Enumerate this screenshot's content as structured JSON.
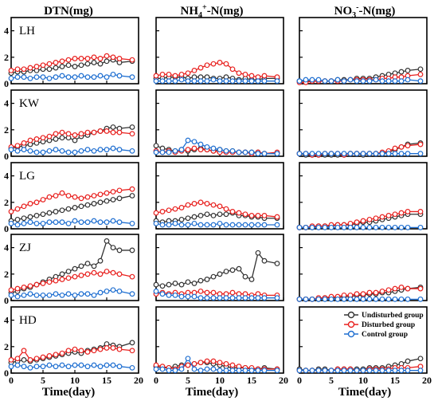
{
  "chart_data": {
    "type": "line",
    "columns": [
      {
        "title": "DTN(mg)",
        "sup": ""
      },
      {
        "title": "NH",
        "sub": "4",
        "sup": "+",
        "rest": "-N(mg)"
      },
      {
        "title": "NO",
        "sub": "3",
        "sup": "-",
        "rest": "-N(mg)"
      }
    ],
    "rows": [
      "LH",
      "KW",
      "LG",
      "ZJ",
      "HD"
    ],
    "xlabel": "Time(day)",
    "xlim": [
      0,
      20
    ],
    "ylim": [
      0,
      5
    ],
    "xticks": [
      0,
      5,
      10,
      15,
      20
    ],
    "yticks": [
      0,
      2,
      4
    ],
    "series_names": [
      "Undisturbed group",
      "Disturbed group",
      "Control group"
    ],
    "series_colors": [
      "#333333",
      "#e8201e",
      "#1f6fd1"
    ],
    "x": [
      0,
      1,
      2,
      3,
      4,
      5,
      6,
      7,
      8,
      9,
      10,
      11,
      12,
      13,
      14,
      15,
      16,
      17,
      19
    ],
    "panels": [
      [
        {
          "values": [
            [
              0.8,
              0.9,
              0.9,
              1.0,
              1.0,
              1.1,
              1.1,
              1.2,
              1.3,
              1.4,
              1.3,
              1.4,
              1.5,
              1.6,
              1.5,
              1.7,
              1.8,
              1.6,
              1.7
            ],
            [
              1.0,
              1.1,
              1.1,
              1.2,
              1.3,
              1.4,
              1.5,
              1.6,
              1.7,
              1.8,
              1.9,
              1.9,
              1.9,
              2.0,
              1.9,
              2.1,
              2.0,
              1.9,
              1.8
            ],
            [
              0.4,
              0.5,
              0.5,
              0.4,
              0.5,
              0.5,
              0.4,
              0.5,
              0.6,
              0.5,
              0.5,
              0.6,
              0.5,
              0.5,
              0.6,
              0.5,
              0.7,
              0.6,
              0.5
            ]
          ]
        },
        {
          "values": [
            [
              0.4,
              0.4,
              0.5,
              0.5,
              0.5,
              0.4,
              0.5,
              0.5,
              0.5,
              0.4,
              0.4,
              0.5,
              0.4,
              0.3,
              0.4,
              0.3,
              0.3,
              0.4,
              0.4
            ],
            [
              0.6,
              0.7,
              0.7,
              0.6,
              0.7,
              0.8,
              1.0,
              1.2,
              1.4,
              1.5,
              1.6,
              1.5,
              1.1,
              0.8,
              0.7,
              0.6,
              0.5,
              0.6,
              0.5
            ],
            [
              0.2,
              0.2,
              0.2,
              0.2,
              0.3,
              0.2,
              0.2,
              0.2,
              0.2,
              0.3,
              0.2,
              0.2,
              0.2,
              0.2,
              0.2,
              0.2,
              0.2,
              0.2,
              0.2
            ]
          ]
        },
        {
          "values": [
            [
              0.2,
              0.2,
              0.2,
              0.2,
              0.2,
              0.2,
              0.3,
              0.3,
              0.3,
              0.4,
              0.4,
              0.4,
              0.5,
              0.6,
              0.7,
              0.8,
              0.9,
              1.0,
              1.1
            ],
            [
              0.1,
              0.1,
              0.2,
              0.2,
              0.2,
              0.2,
              0.2,
              0.2,
              0.3,
              0.3,
              0.3,
              0.3,
              0.3,
              0.4,
              0.4,
              0.5,
              0.5,
              0.6,
              0.7
            ],
            [
              0.2,
              0.3,
              0.3,
              0.3,
              0.2,
              0.2,
              0.3,
              0.2,
              0.3,
              0.2,
              0.2,
              0.2,
              0.3,
              0.2,
              0.2,
              0.2,
              0.2,
              0.3,
              0.2
            ]
          ]
        }
      ],
      [
        {
          "values": [
            [
              0.6,
              0.7,
              0.8,
              0.9,
              1.0,
              1.1,
              1.2,
              1.3,
              1.4,
              1.4,
              1.2,
              1.5,
              1.6,
              1.8,
              1.9,
              2.1,
              2.2,
              2.1,
              2.2
            ],
            [
              0.7,
              0.8,
              1.0,
              1.2,
              1.3,
              1.4,
              1.5,
              1.7,
              1.8,
              1.7,
              1.6,
              1.7,
              1.8,
              1.8,
              1.9,
              1.9,
              1.8,
              1.8,
              1.7
            ],
            [
              0.5,
              0.4,
              0.5,
              0.4,
              0.3,
              0.3,
              0.4,
              0.5,
              0.4,
              0.3,
              0.3,
              0.4,
              0.5,
              0.4,
              0.5,
              0.5,
              0.6,
              0.5,
              0.4
            ]
          ]
        },
        {
          "values": [
            [
              0.8,
              0.6,
              0.5,
              0.4,
              0.5,
              0.4,
              0.5,
              0.6,
              0.5,
              0.4,
              0.5,
              0.4,
              0.4,
              0.3,
              0.3,
              0.3,
              0.3,
              0.2,
              0.2
            ],
            [
              0.4,
              0.3,
              0.4,
              0.3,
              0.4,
              0.5,
              0.6,
              0.5,
              0.5,
              0.4,
              0.3,
              0.3,
              0.3,
              0.3,
              0.3,
              0.2,
              0.3,
              0.2,
              0.3
            ],
            [
              0.3,
              0.3,
              0.3,
              0.4,
              0.5,
              1.2,
              1.1,
              0.9,
              0.7,
              0.6,
              0.5,
              0.4,
              0.4,
              0.3,
              0.3,
              0.3,
              0.2,
              0.2,
              0.2
            ]
          ]
        },
        {
          "values": [
            [
              0.2,
              0.1,
              0.1,
              0.1,
              0.1,
              0.1,
              0.1,
              0.1,
              0.2,
              0.2,
              0.1,
              0.2,
              0.2,
              0.2,
              0.3,
              0.5,
              0.7,
              0.9,
              1.0
            ],
            [
              0.2,
              0.2,
              0.1,
              0.1,
              0.2,
              0.2,
              0.2,
              0.1,
              0.2,
              0.2,
              0.2,
              0.2,
              0.2,
              0.3,
              0.4,
              0.6,
              0.7,
              0.8,
              0.9
            ],
            [
              0.2,
              0.2,
              0.2,
              0.2,
              0.2,
              0.2,
              0.2,
              0.2,
              0.2,
              0.2,
              0.2,
              0.2,
              0.2,
              0.2,
              0.2,
              0.2,
              0.2,
              0.2,
              0.2
            ]
          ]
        }
      ],
      [
        {
          "values": [
            [
              0.6,
              0.7,
              0.8,
              0.9,
              1.0,
              1.1,
              1.2,
              1.3,
              1.4,
              1.5,
              1.6,
              1.7,
              1.8,
              1.9,
              2.0,
              2.1,
              2.2,
              2.3,
              2.5
            ],
            [
              1.3,
              1.5,
              1.7,
              1.9,
              2.0,
              2.2,
              2.4,
              2.5,
              2.7,
              2.5,
              2.4,
              2.3,
              2.4,
              2.5,
              2.6,
              2.7,
              2.8,
              2.9,
              3.0
            ],
            [
              0.4,
              0.3,
              0.4,
              0.5,
              0.4,
              0.4,
              0.5,
              0.5,
              0.5,
              0.4,
              0.6,
              0.5,
              0.5,
              0.6,
              0.5,
              0.5,
              0.6,
              0.5,
              0.4
            ]
          ]
        },
        {
          "values": [
            [
              0.6,
              0.5,
              0.6,
              0.6,
              0.7,
              0.8,
              0.9,
              1.0,
              1.1,
              1.0,
              1.1,
              1.1,
              1.2,
              1.0,
              1.0,
              0.9,
              0.9,
              0.8,
              0.8
            ],
            [
              1.2,
              1.3,
              1.4,
              1.5,
              1.6,
              1.8,
              1.9,
              2.0,
              1.9,
              1.8,
              1.7,
              1.5,
              1.3,
              1.2,
              1.1,
              1.0,
              1.0,
              1.0,
              0.9
            ],
            [
              0.4,
              0.3,
              0.3,
              0.4,
              0.3,
              0.3,
              0.4,
              0.3,
              0.3,
              0.3,
              0.4,
              0.3,
              0.3,
              0.3,
              0.3,
              0.3,
              0.3,
              0.3,
              0.3
            ]
          ]
        },
        {
          "values": [
            [
              0.1,
              0.1,
              0.1,
              0.2,
              0.2,
              0.2,
              0.3,
              0.3,
              0.3,
              0.4,
              0.5,
              0.5,
              0.6,
              0.7,
              0.8,
              0.9,
              1.0,
              1.1,
              1.1
            ],
            [
              0.1,
              0.1,
              0.2,
              0.2,
              0.2,
              0.3,
              0.3,
              0.3,
              0.4,
              0.5,
              0.6,
              0.7,
              0.8,
              0.9,
              1.0,
              1.1,
              1.2,
              1.3,
              1.3
            ],
            [
              0.1,
              0.1,
              0.1,
              0.1,
              0.1,
              0.1,
              0.1,
              0.1,
              0.1,
              0.1,
              0.1,
              0.1,
              0.1,
              0.1,
              0.1,
              0.1,
              0.1,
              0.1,
              0.1
            ]
          ]
        }
      ],
      [
        {
          "values": [
            [
              0.6,
              0.7,
              0.9,
              1.0,
              1.2,
              1.4,
              1.6,
              1.8,
              2.0,
              2.2,
              2.4,
              2.6,
              2.8,
              2.6,
              3.0,
              4.5,
              4.0,
              3.8,
              3.8
            ],
            [
              0.8,
              0.9,
              1.0,
              1.1,
              1.2,
              1.3,
              1.4,
              1.5,
              1.6,
              1.7,
              1.8,
              1.9,
              2.0,
              2.1,
              2.0,
              2.2,
              2.1,
              2.0,
              1.8
            ],
            [
              0.4,
              0.3,
              0.4,
              0.5,
              0.4,
              0.4,
              0.4,
              0.5,
              0.4,
              0.5,
              0.4,
              0.5,
              0.5,
              0.4,
              0.6,
              0.7,
              0.8,
              0.7,
              0.5
            ]
          ]
        },
        {
          "values": [
            [
              1.2,
              1.1,
              1.2,
              1.3,
              1.2,
              1.4,
              1.3,
              1.5,
              1.6,
              1.8,
              2.0,
              2.2,
              2.3,
              2.4,
              1.8,
              1.6,
              3.6,
              3.0,
              2.8
            ],
            [
              0.5,
              0.6,
              0.5,
              0.6,
              0.5,
              0.6,
              0.6,
              0.7,
              0.6,
              0.6,
              0.5,
              0.5,
              0.6,
              0.5,
              0.5,
              0.4,
              0.5,
              0.4,
              0.4
            ],
            [
              0.7,
              0.5,
              0.4,
              0.4,
              0.3,
              0.3,
              0.3,
              0.2,
              0.2,
              0.2,
              0.2,
              0.2,
              0.2,
              0.2,
              0.2,
              0.2,
              0.2,
              0.2,
              0.2
            ]
          ]
        },
        {
          "values": [
            [
              0.1,
              0.1,
              0.1,
              0.1,
              0.2,
              0.2,
              0.2,
              0.3,
              0.3,
              0.4,
              0.4,
              0.5,
              0.5,
              0.6,
              0.6,
              0.7,
              0.8,
              0.9,
              1.0
            ],
            [
              0.1,
              0.1,
              0.1,
              0.2,
              0.2,
              0.3,
              0.3,
              0.4,
              0.4,
              0.5,
              0.5,
              0.6,
              0.6,
              0.7,
              0.8,
              0.9,
              1.0,
              0.9,
              0.9
            ],
            [
              0.1,
              0.1,
              0.1,
              0.1,
              0.1,
              0.1,
              0.1,
              0.1,
              0.1,
              0.1,
              0.1,
              0.1,
              0.1,
              0.1,
              0.1,
              0.1,
              0.1,
              0.1,
              0.1
            ]
          ]
        }
      ],
      [
        {
          "values": [
            [
              0.8,
              0.9,
              1.0,
              0.9,
              1.0,
              1.1,
              1.2,
              1.3,
              1.4,
              1.5,
              1.6,
              1.5,
              1.7,
              1.8,
              1.9,
              2.2,
              2.1,
              2.0,
              2.3
            ],
            [
              1.0,
              1.1,
              1.7,
              1.0,
              1.1,
              1.2,
              1.3,
              1.4,
              1.5,
              1.7,
              1.8,
              1.7,
              1.6,
              1.7,
              1.8,
              1.9,
              1.9,
              1.8,
              1.7
            ],
            [
              0.5,
              0.6,
              0.5,
              0.4,
              0.5,
              0.5,
              0.6,
              0.5,
              0.6,
              0.5,
              0.6,
              0.6,
              0.5,
              0.6,
              0.5,
              0.6,
              0.6,
              0.5,
              0.4
            ]
          ]
        },
        {
          "values": [
            [
              0.5,
              0.4,
              0.4,
              0.5,
              0.6,
              0.6,
              0.7,
              0.8,
              0.8,
              0.7,
              0.6,
              0.5,
              0.4,
              0.4,
              0.4,
              0.3,
              0.3,
              0.4,
              0.3
            ],
            [
              0.6,
              0.5,
              0.4,
              0.3,
              0.5,
              0.6,
              0.7,
              0.8,
              0.9,
              0.9,
              0.8,
              0.7,
              0.6,
              0.5,
              0.4,
              0.4,
              0.3,
              0.3,
              0.3
            ],
            [
              0.3,
              0.3,
              0.2,
              0.2,
              0.3,
              1.1,
              0.3,
              0.2,
              0.3,
              0.3,
              0.2,
              0.2,
              0.2,
              0.2,
              0.2,
              0.2,
              0.2,
              0.2,
              0.2
            ]
          ]
        },
        {
          "values": [
            [
              0.3,
              0.2,
              0.2,
              0.3,
              0.3,
              0.2,
              0.3,
              0.3,
              0.3,
              0.3,
              0.3,
              0.4,
              0.4,
              0.4,
              0.5,
              0.6,
              0.7,
              0.9,
              1.1
            ],
            [
              0.2,
              0.2,
              0.2,
              0.2,
              0.2,
              0.2,
              0.3,
              0.3,
              0.3,
              0.2,
              0.2,
              0.3,
              0.3,
              0.3,
              0.3,
              0.4,
              0.4,
              0.4,
              0.5
            ],
            [
              0.2,
              0.2,
              0.2,
              0.2,
              0.2,
              0.2,
              0.2,
              0.2,
              0.2,
              0.2,
              0.2,
              0.2,
              0.2,
              0.2,
              0.2,
              0.2,
              0.2,
              0.2,
              0.2
            ]
          ]
        }
      ]
    ]
  }
}
